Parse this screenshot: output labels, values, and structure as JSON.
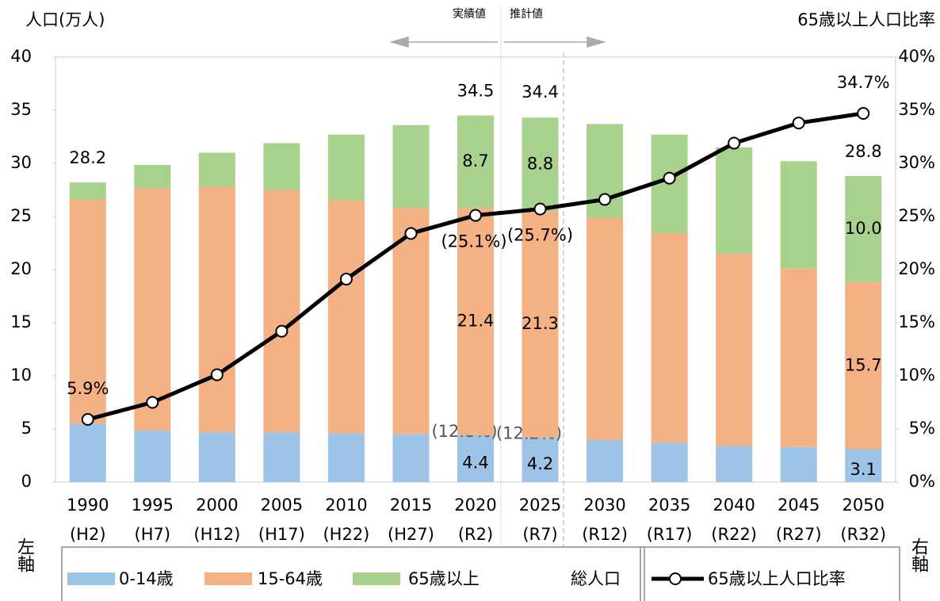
{
  "chart_data": {
    "type": "stacked-bar-line",
    "y_axis_label": "人口(万人)",
    "y2_axis_label": "65歳以上人口比率",
    "actual_label": "実績値",
    "projection_label": "推計値",
    "left_axis_label": "左軸",
    "right_axis_label": "右軸",
    "categories": [
      "1990",
      "1995",
      "2000",
      "2005",
      "2010",
      "2015",
      "2020",
      "2025",
      "2030",
      "2035",
      "2040",
      "2045",
      "2050"
    ],
    "era_labels": [
      "(H2)",
      "(H7)",
      "(H12)",
      "(H17)",
      "(H22)",
      "(H27)",
      "(R2)",
      "(R7)",
      "(R12)",
      "(R17)",
      "(R22)",
      "(R27)",
      "(R32)"
    ],
    "ylim": [
      0,
      40
    ],
    "yticks": [
      0,
      5,
      10,
      15,
      20,
      25,
      30,
      35,
      40
    ],
    "y2lim": [
      0,
      40
    ],
    "y2ticks": [
      {
        "value": 0,
        "label": "0%"
      },
      {
        "value": 5,
        "label": "5%"
      },
      {
        "value": 10,
        "label": "10%"
      },
      {
        "value": 15,
        "label": "15%"
      },
      {
        "value": 20,
        "label": "20%"
      },
      {
        "value": 25,
        "label": "25%"
      },
      {
        "value": 30,
        "label": "30%"
      },
      {
        "value": 35,
        "label": "35%"
      },
      {
        "value": 40,
        "label": "40%"
      }
    ],
    "series": [
      {
        "name": "0-14歳",
        "color": "#9dc3e6",
        "values": [
          5.5,
          4.85,
          4.7,
          4.7,
          4.6,
          4.5,
          4.4,
          4.2,
          3.95,
          3.7,
          3.4,
          3.3,
          3.1
        ],
        "value_labels": [
          null,
          null,
          null,
          null,
          null,
          null,
          "4.4",
          "4.2",
          null,
          null,
          null,
          null,
          "3.1"
        ],
        "share_labels": [
          null,
          null,
          null,
          null,
          null,
          null,
          "(12.8%)",
          "(12.2%)",
          null,
          null,
          null,
          null,
          null
        ]
      },
      {
        "name": "15-64歳",
        "color": "#f4b183",
        "values": [
          21.1,
          22.8,
          23.1,
          22.8,
          21.9,
          21.3,
          21.4,
          21.3,
          20.9,
          19.7,
          18.1,
          16.8,
          15.7
        ],
        "value_labels": [
          null,
          null,
          null,
          null,
          null,
          null,
          "21.4",
          "21.3",
          null,
          null,
          null,
          null,
          "15.7"
        ]
      },
      {
        "name": "65歳以上",
        "color": "#a9d18e",
        "values": [
          1.6,
          2.2,
          3.2,
          4.4,
          6.2,
          7.8,
          8.7,
          8.8,
          8.85,
          9.3,
          10.0,
          10.1,
          10.0
        ],
        "value_labels": [
          null,
          null,
          null,
          null,
          null,
          null,
          "8.7",
          "8.8",
          null,
          null,
          null,
          null,
          "10.0"
        ]
      },
      {
        "name": "65歳以上人口比率",
        "color": "#000000",
        "axis": "y2",
        "values": [
          5.9,
          7.5,
          10.1,
          14.2,
          19.1,
          23.4,
          25.1,
          25.7,
          26.6,
          28.6,
          31.9,
          33.8,
          34.7
        ],
        "value_labels": [
          "5.9%",
          null,
          null,
          null,
          null,
          null,
          "(25.1%)",
          "(25.7%)",
          null,
          null,
          null,
          null,
          "34.7%"
        ]
      }
    ],
    "totals": {
      "name": "総人口",
      "values": [
        28.2,
        null,
        null,
        null,
        null,
        null,
        34.5,
        34.4,
        null,
        null,
        null,
        null,
        28.8
      ]
    }
  }
}
